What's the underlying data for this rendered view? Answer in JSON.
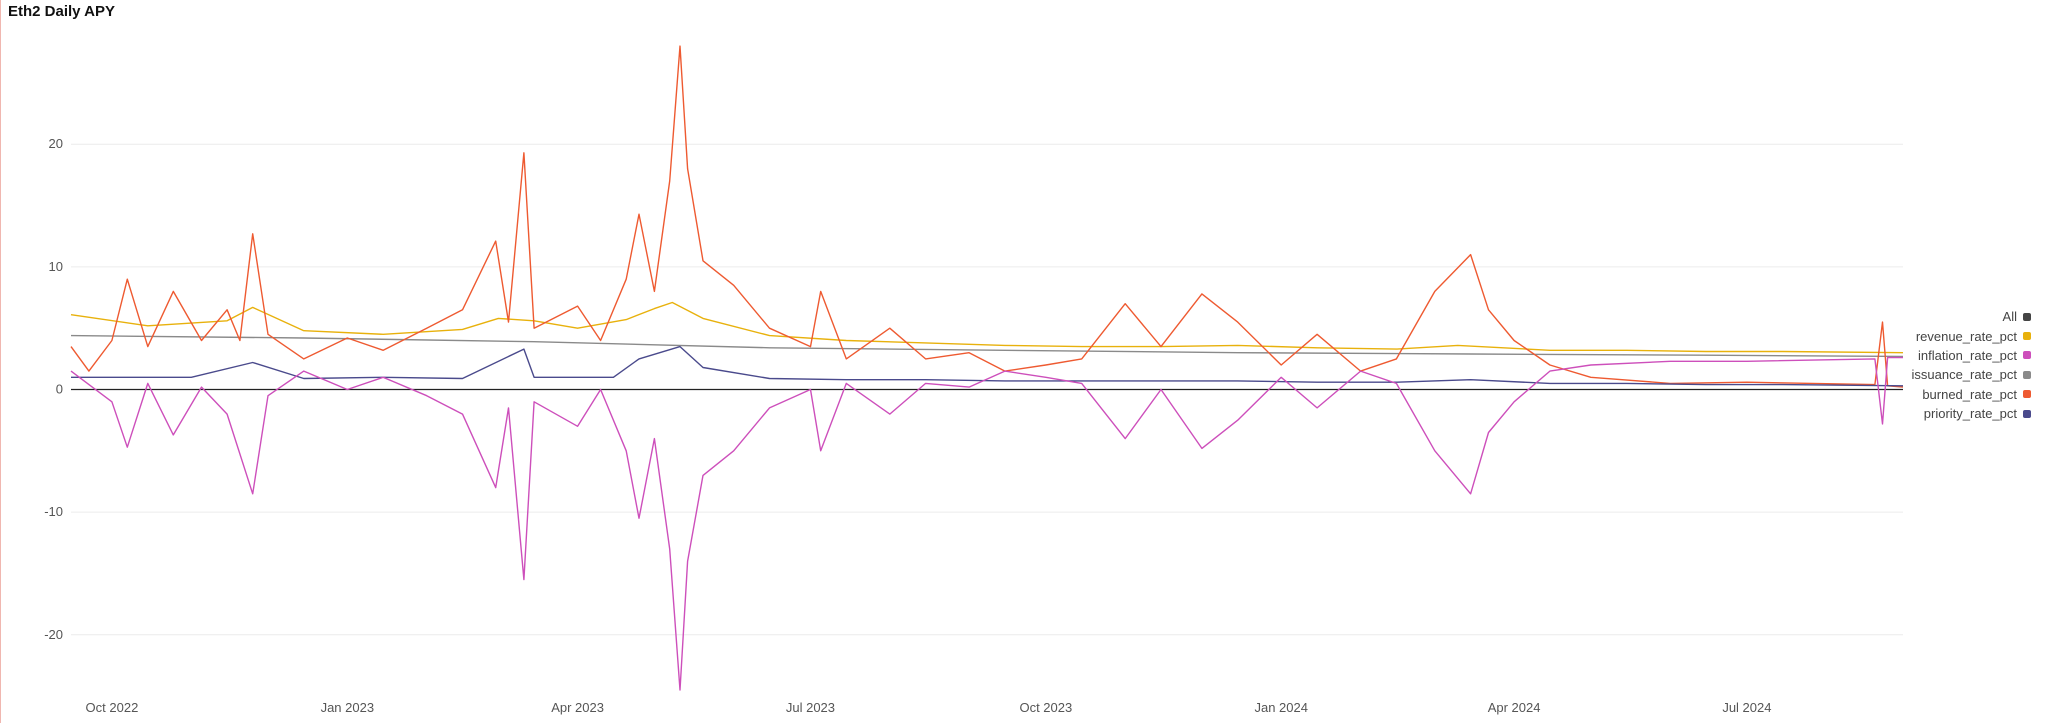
{
  "chart_data": {
    "type": "line",
    "title": "Eth2 Daily APY",
    "x_start": "2022-09-15",
    "x_end": "2024-08-31",
    "x_ticks": [
      {
        "label": "Oct 2022",
        "date": "2022-10-01"
      },
      {
        "label": "Jan 2023",
        "date": "2023-01-01"
      },
      {
        "label": "Apr 2023",
        "date": "2023-04-01"
      },
      {
        "label": "Jul 2023",
        "date": "2023-07-01"
      },
      {
        "label": "Oct 2023",
        "date": "2023-10-01"
      },
      {
        "label": "Jan 2024",
        "date": "2024-01-01"
      },
      {
        "label": "Apr 2024",
        "date": "2024-04-01"
      },
      {
        "label": "Jul 2024",
        "date": "2024-07-01"
      }
    ],
    "y_ticks": [
      20,
      10,
      0,
      -10,
      -20
    ],
    "ylim": [
      -24.5,
      28.5
    ],
    "grid": true,
    "legend_position": "right",
    "legend": [
      {
        "label": "All",
        "color": "#444444"
      },
      {
        "label": "revenue_rate_pct",
        "color": "#e8b10c"
      },
      {
        "label": "inflation_rate_pct",
        "color": "#cd4fbb"
      },
      {
        "label": "issuance_rate_pct",
        "color": "#8a8a8a"
      },
      {
        "label": "burned_rate_pct",
        "color": "#ee5a31"
      },
      {
        "label": "priority_rate_pct",
        "color": "#4a4a8c"
      }
    ],
    "series": [
      {
        "name": "revenue_rate_pct",
        "color": "#e8b10c",
        "points": [
          [
            "2022-09-15",
            6.1
          ],
          [
            "2022-10-15",
            5.2
          ],
          [
            "2022-11-15",
            5.6
          ],
          [
            "2022-11-25",
            6.7
          ],
          [
            "2022-12-15",
            4.8
          ],
          [
            "2023-01-15",
            4.5
          ],
          [
            "2023-02-15",
            4.9
          ],
          [
            "2023-03-01",
            5.8
          ],
          [
            "2023-03-15",
            5.6
          ],
          [
            "2023-04-01",
            5.0
          ],
          [
            "2023-04-20",
            5.7
          ],
          [
            "2023-05-01",
            6.6
          ],
          [
            "2023-05-08",
            7.1
          ],
          [
            "2023-05-20",
            5.8
          ],
          [
            "2023-06-15",
            4.4
          ],
          [
            "2023-07-15",
            4.0
          ],
          [
            "2023-08-15",
            3.8
          ],
          [
            "2023-09-15",
            3.6
          ],
          [
            "2023-10-15",
            3.5
          ],
          [
            "2023-11-15",
            3.5
          ],
          [
            "2023-12-15",
            3.6
          ],
          [
            "2024-01-15",
            3.4
          ],
          [
            "2024-02-15",
            3.3
          ],
          [
            "2024-03-10",
            3.6
          ],
          [
            "2024-04-15",
            3.2
          ],
          [
            "2024-05-15",
            3.2
          ],
          [
            "2024-06-15",
            3.1
          ],
          [
            "2024-07-15",
            3.1
          ],
          [
            "2024-08-31",
            3.0
          ]
        ]
      },
      {
        "name": "issuance_rate_pct",
        "color": "#8a8a8a",
        "points": [
          [
            "2022-09-15",
            4.4
          ],
          [
            "2022-12-15",
            4.2
          ],
          [
            "2023-03-15",
            3.9
          ],
          [
            "2023-06-15",
            3.4
          ],
          [
            "2023-09-15",
            3.2
          ],
          [
            "2023-12-15",
            3.0
          ],
          [
            "2024-03-15",
            2.9
          ],
          [
            "2024-06-15",
            2.8
          ],
          [
            "2024-08-31",
            2.7
          ]
        ]
      },
      {
        "name": "burned_rate_pct",
        "color": "#ee5a31",
        "points": [
          [
            "2022-09-15",
            3.5
          ],
          [
            "2022-09-22",
            1.5
          ],
          [
            "2022-10-01",
            4.0
          ],
          [
            "2022-10-07",
            9.0
          ],
          [
            "2022-10-15",
            3.5
          ],
          [
            "2022-10-25",
            8.0
          ],
          [
            "2022-11-05",
            4.0
          ],
          [
            "2022-11-15",
            6.5
          ],
          [
            "2022-11-20",
            4.0
          ],
          [
            "2022-11-25",
            12.7
          ],
          [
            "2022-12-01",
            4.5
          ],
          [
            "2022-12-15",
            2.5
          ],
          [
            "2023-01-01",
            4.2
          ],
          [
            "2023-01-15",
            3.2
          ],
          [
            "2023-02-01",
            5.0
          ],
          [
            "2023-02-15",
            6.5
          ],
          [
            "2023-02-28",
            12.1
          ],
          [
            "2023-03-05",
            5.5
          ],
          [
            "2023-03-11",
            19.3
          ],
          [
            "2023-03-15",
            5.0
          ],
          [
            "2023-04-01",
            6.8
          ],
          [
            "2023-04-10",
            4.0
          ],
          [
            "2023-04-20",
            9.0
          ],
          [
            "2023-04-25",
            14.3
          ],
          [
            "2023-05-01",
            8.0
          ],
          [
            "2023-05-07",
            17.0
          ],
          [
            "2023-05-11",
            28.0
          ],
          [
            "2023-05-14",
            18.0
          ],
          [
            "2023-05-20",
            10.5
          ],
          [
            "2023-06-01",
            8.5
          ],
          [
            "2023-06-15",
            5.0
          ],
          [
            "2023-07-01",
            3.5
          ],
          [
            "2023-07-05",
            8.0
          ],
          [
            "2023-07-15",
            2.5
          ],
          [
            "2023-08-01",
            5.0
          ],
          [
            "2023-08-15",
            2.5
          ],
          [
            "2023-09-01",
            3.0
          ],
          [
            "2023-09-15",
            1.5
          ],
          [
            "2023-10-01",
            2.0
          ],
          [
            "2023-10-15",
            2.5
          ],
          [
            "2023-11-01",
            7.0
          ],
          [
            "2023-11-15",
            3.5
          ],
          [
            "2023-12-01",
            7.8
          ],
          [
            "2023-12-15",
            5.5
          ],
          [
            "2024-01-01",
            2.0
          ],
          [
            "2024-01-15",
            4.5
          ],
          [
            "2024-02-01",
            1.5
          ],
          [
            "2024-02-15",
            2.5
          ],
          [
            "2024-03-01",
            8.0
          ],
          [
            "2024-03-15",
            11.0
          ],
          [
            "2024-03-22",
            6.5
          ],
          [
            "2024-04-01",
            4.0
          ],
          [
            "2024-04-15",
            2.0
          ],
          [
            "2024-05-01",
            1.0
          ],
          [
            "2024-06-01",
            0.5
          ],
          [
            "2024-07-01",
            0.6
          ],
          [
            "2024-08-20",
            0.4
          ],
          [
            "2024-08-23",
            5.5
          ],
          [
            "2024-08-25",
            0.3
          ],
          [
            "2024-08-31",
            0.2
          ]
        ]
      },
      {
        "name": "priority_rate_pct",
        "color": "#4a4a8c",
        "points": [
          [
            "2022-09-15",
            1.0
          ],
          [
            "2022-11-01",
            1.0
          ],
          [
            "2022-11-25",
            2.2
          ],
          [
            "2022-12-15",
            0.9
          ],
          [
            "2023-01-15",
            1.0
          ],
          [
            "2023-02-15",
            0.9
          ],
          [
            "2023-03-11",
            3.3
          ],
          [
            "2023-03-15",
            1.0
          ],
          [
            "2023-04-15",
            1.0
          ],
          [
            "2023-04-25",
            2.5
          ],
          [
            "2023-05-11",
            3.5
          ],
          [
            "2023-05-20",
            1.8
          ],
          [
            "2023-06-15",
            0.9
          ],
          [
            "2023-07-15",
            0.8
          ],
          [
            "2023-08-15",
            0.8
          ],
          [
            "2023-09-15",
            0.7
          ],
          [
            "2023-10-15",
            0.7
          ],
          [
            "2023-11-15",
            0.7
          ],
          [
            "2023-12-15",
            0.7
          ],
          [
            "2024-01-15",
            0.6
          ],
          [
            "2024-02-15",
            0.6
          ],
          [
            "2024-03-15",
            0.8
          ],
          [
            "2024-04-15",
            0.5
          ],
          [
            "2024-05-15",
            0.5
          ],
          [
            "2024-06-15",
            0.4
          ],
          [
            "2024-07-15",
            0.4
          ],
          [
            "2024-08-31",
            0.3
          ]
        ]
      },
      {
        "name": "inflation_rate_pct",
        "color": "#cd4fbb",
        "points": [
          [
            "2022-09-15",
            1.5
          ],
          [
            "2022-10-01",
            -1.0
          ],
          [
            "2022-10-07",
            -4.7
          ],
          [
            "2022-10-15",
            0.5
          ],
          [
            "2022-10-25",
            -3.7
          ],
          [
            "2022-11-05",
            0.2
          ],
          [
            "2022-11-15",
            -2.0
          ],
          [
            "2022-11-25",
            -8.5
          ],
          [
            "2022-12-01",
            -0.5
          ],
          [
            "2022-12-15",
            1.5
          ],
          [
            "2023-01-01",
            0.0
          ],
          [
            "2023-01-15",
            1.0
          ],
          [
            "2023-02-01",
            -0.5
          ],
          [
            "2023-02-15",
            -2.0
          ],
          [
            "2023-02-28",
            -8.0
          ],
          [
            "2023-03-05",
            -1.5
          ],
          [
            "2023-03-11",
            -15.5
          ],
          [
            "2023-03-15",
            -1.0
          ],
          [
            "2023-04-01",
            -3.0
          ],
          [
            "2023-04-10",
            0.0
          ],
          [
            "2023-04-20",
            -5.0
          ],
          [
            "2023-04-25",
            -10.5
          ],
          [
            "2023-05-01",
            -4.0
          ],
          [
            "2023-05-07",
            -13.0
          ],
          [
            "2023-05-11",
            -24.5
          ],
          [
            "2023-05-14",
            -14.0
          ],
          [
            "2023-05-20",
            -7.0
          ],
          [
            "2023-06-01",
            -5.0
          ],
          [
            "2023-06-15",
            -1.5
          ],
          [
            "2023-07-01",
            0.0
          ],
          [
            "2023-07-05",
            -5.0
          ],
          [
            "2023-07-15",
            0.5
          ],
          [
            "2023-08-01",
            -2.0
          ],
          [
            "2023-08-15",
            0.5
          ],
          [
            "2023-09-01",
            0.2
          ],
          [
            "2023-09-15",
            1.5
          ],
          [
            "2023-10-01",
            1.0
          ],
          [
            "2023-10-15",
            0.5
          ],
          [
            "2023-11-01",
            -4.0
          ],
          [
            "2023-11-15",
            0.0
          ],
          [
            "2023-12-01",
            -4.8
          ],
          [
            "2023-12-15",
            -2.5
          ],
          [
            "2024-01-01",
            1.0
          ],
          [
            "2024-01-15",
            -1.5
          ],
          [
            "2024-02-01",
            1.5
          ],
          [
            "2024-02-15",
            0.5
          ],
          [
            "2024-03-01",
            -5.0
          ],
          [
            "2024-03-15",
            -8.5
          ],
          [
            "2024-03-22",
            -3.5
          ],
          [
            "2024-04-01",
            -1.0
          ],
          [
            "2024-04-15",
            1.5
          ],
          [
            "2024-05-01",
            2.0
          ],
          [
            "2024-06-01",
            2.3
          ],
          [
            "2024-07-01",
            2.3
          ],
          [
            "2024-08-20",
            2.5
          ],
          [
            "2024-08-23",
            -2.8
          ],
          [
            "2024-08-25",
            2.6
          ],
          [
            "2024-08-31",
            2.6
          ]
        ]
      }
    ]
  }
}
